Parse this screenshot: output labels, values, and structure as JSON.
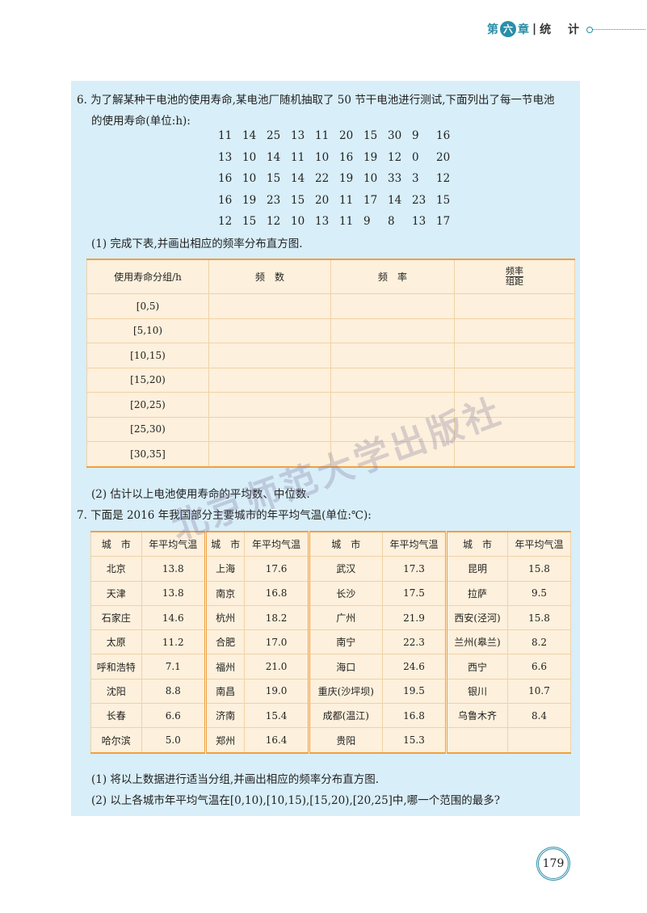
{
  "header": {
    "prefix": "第",
    "chapter": "六",
    "suffix": "章",
    "separator": "|",
    "title": "统 计"
  },
  "q6": {
    "text_line1": "6. 为了解某种干电池的使用寿命,某电池厂随机抽取了 50 节干电池进行测试,下面列出了每一节电池",
    "text_line2": "的使用寿命(单位:h):",
    "data": [
      [
        11,
        14,
        25,
        13,
        11,
        20,
        15,
        30,
        9,
        16
      ],
      [
        13,
        10,
        14,
        11,
        10,
        16,
        19,
        12,
        0,
        20
      ],
      [
        16,
        10,
        15,
        14,
        22,
        19,
        10,
        33,
        3,
        12
      ],
      [
        16,
        19,
        23,
        15,
        20,
        11,
        17,
        14,
        23,
        15
      ],
      [
        12,
        15,
        12,
        10,
        13,
        11,
        9,
        8,
        13,
        17
      ]
    ],
    "part1": "(1) 完成下表,并画出相应的频率分布直方图.",
    "table_headers": [
      "使用寿命分组/h",
      "频　数",
      "频　率"
    ],
    "header_frac": {
      "num": "频率",
      "den": "组距"
    },
    "groups": [
      "[0,5)",
      "[5,10)",
      "[10,15)",
      "[15,20)",
      "[20,25)",
      "[25,30)",
      "[30,35]"
    ],
    "part2": "(2) 估计以上电池使用寿命的平均数、中位数."
  },
  "q7": {
    "text": "7. 下面是 2016 年我国部分主要城市的年平均气温(单位:℃):",
    "col_city": "城　市",
    "col_temp": "年平均气温",
    "rows": [
      [
        [
          "北京",
          "13.8"
        ],
        [
          "上海",
          "17.6"
        ],
        [
          "武汉",
          "17.3"
        ],
        [
          "昆明",
          "15.8"
        ]
      ],
      [
        [
          "天津",
          "13.8"
        ],
        [
          "南京",
          "16.8"
        ],
        [
          "长沙",
          "17.5"
        ],
        [
          "拉萨",
          "9.5"
        ]
      ],
      [
        [
          "石家庄",
          "14.6"
        ],
        [
          "杭州",
          "18.2"
        ],
        [
          "广州",
          "21.9"
        ],
        [
          "西安(泾河)",
          "15.8"
        ]
      ],
      [
        [
          "太原",
          "11.2"
        ],
        [
          "合肥",
          "17.0"
        ],
        [
          "南宁",
          "22.3"
        ],
        [
          "兰州(皋兰)",
          "8.2"
        ]
      ],
      [
        [
          "呼和浩特",
          "7.1"
        ],
        [
          "福州",
          "21.0"
        ],
        [
          "海口",
          "24.6"
        ],
        [
          "西宁",
          "6.6"
        ]
      ],
      [
        [
          "沈阳",
          "8.8"
        ],
        [
          "南昌",
          "19.0"
        ],
        [
          "重庆(沙坪坝)",
          "19.5"
        ],
        [
          "银川",
          "10.7"
        ]
      ],
      [
        [
          "长春",
          "6.6"
        ],
        [
          "济南",
          "15.4"
        ],
        [
          "成都(温江)",
          "16.8"
        ],
        [
          "乌鲁木齐",
          "8.4"
        ]
      ],
      [
        [
          "哈尔滨",
          "5.0"
        ],
        [
          "郑州",
          "16.4"
        ],
        [
          "贵阳",
          "15.3"
        ],
        [
          "",
          ""
        ]
      ]
    ],
    "part1": "(1) 将以上数据进行适当分组,并画出相应的频率分布直方图.",
    "part2": "(2) 以上各城市年平均气温在[0,10),[10,15),[15,20),[20,25]中,哪一个范围的最多?"
  },
  "watermark": "北京师范大学出版社",
  "page_number": "179",
  "colors": {
    "accent": "#2a8ea8",
    "panel": "#d8eef8",
    "table": "#fdf0dc",
    "table_rule": "#f0a040"
  }
}
